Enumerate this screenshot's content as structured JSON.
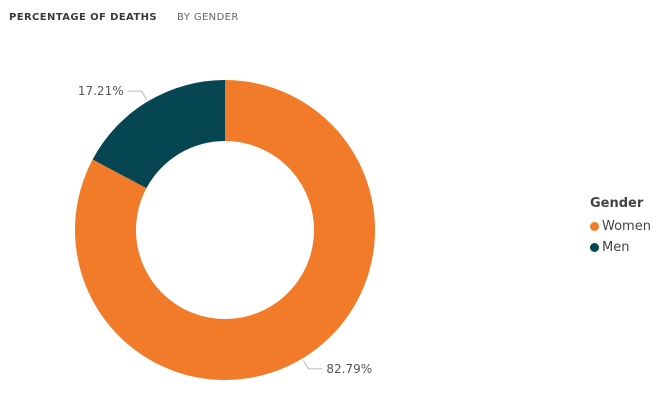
{
  "header": {
    "title": "PERCENTAGE OF DEATHS",
    "subtitle": "BY GENDER"
  },
  "chart_data": {
    "type": "pie",
    "variant": "donut",
    "categories": [
      "Women",
      "Men"
    ],
    "values": [
      82.79,
      17.21
    ],
    "data_labels": [
      "82.79%",
      "17.21%"
    ],
    "colors": [
      "#f27b2a",
      "#064652"
    ],
    "start_angle_deg": 0,
    "direction": "clockwise",
    "legend": {
      "title": "Gender",
      "placement": "right",
      "items": [
        "Women",
        "Men"
      ]
    }
  }
}
